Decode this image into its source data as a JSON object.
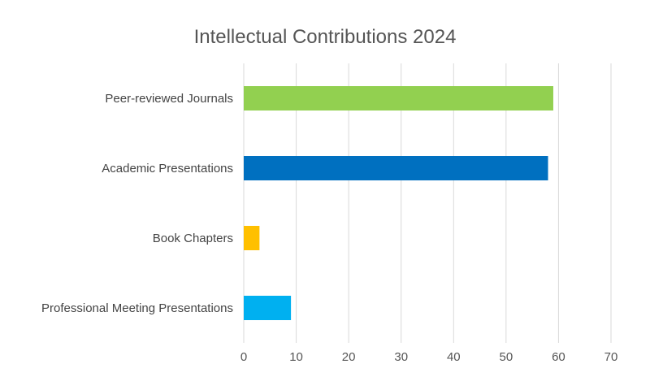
{
  "chart_data": {
    "type": "bar",
    "orientation": "horizontal",
    "title": "Intellectual Contributions 2024",
    "categories": [
      "Peer-reviewed Journals",
      "Academic Presentations",
      "Book Chapters",
      "Professional Meeting Presentations"
    ],
    "values": [
      59,
      58,
      3,
      9
    ],
    "colors": [
      "#92d050",
      "#0070c0",
      "#ffc000",
      "#00b0f0"
    ],
    "xticks": [
      0,
      10,
      20,
      30,
      40,
      50,
      60,
      70
    ],
    "xlim": [
      0,
      70
    ],
    "xlabel": "",
    "ylabel": "",
    "grid": true,
    "legend": "none"
  }
}
